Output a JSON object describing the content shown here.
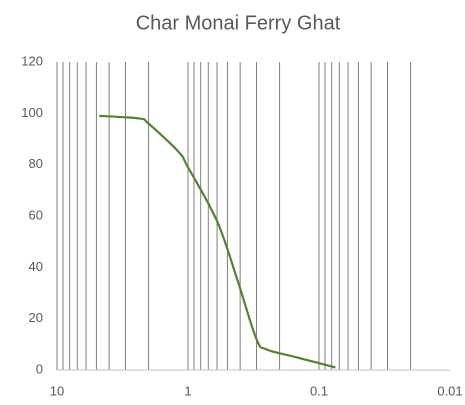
{
  "chart_data": {
    "type": "line",
    "title": "Char Monai Ferry Ghat",
    "x": [
      4.75,
      2.36,
      2,
      1.18,
      1,
      0.6,
      0.425,
      0.3,
      0.25,
      0.15,
      0.075
    ],
    "series": [
      {
        "color": "#548235",
        "values": [
          99,
          98,
          96,
          85,
          79,
          58,
          36,
          12,
          8,
          5,
          1
        ]
      }
    ],
    "xlim": [
      10,
      0.01
    ],
    "xticks": [
      10,
      1,
      0.1,
      0.01
    ],
    "xscale": "log",
    "minor_grid": true,
    "ylim": [
      0,
      120
    ],
    "yticks": [
      0,
      20,
      40,
      60,
      80,
      100,
      120
    ]
  }
}
